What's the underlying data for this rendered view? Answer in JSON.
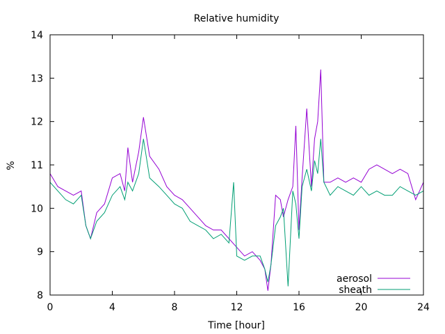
{
  "chart_data": {
    "type": "line",
    "title": "Relative humidity",
    "xlabel": "Time [hour]",
    "ylabel": "%",
    "xlim": [
      0,
      24
    ],
    "ylim": [
      8,
      14
    ],
    "xticks": [
      "0",
      "4",
      "8",
      "12",
      "16",
      "20",
      "24"
    ],
    "yticks": [
      "8",
      "9",
      "10",
      "11",
      "12",
      "13",
      "14"
    ],
    "grid": false,
    "legend_position": "bottom-right",
    "series": [
      {
        "name": "aerosol",
        "color": "#9400d3",
        "x": [
          0,
          0.5,
          1,
          1.5,
          2,
          2.3,
          2.6,
          3,
          3.5,
          4,
          4.5,
          4.8,
          5,
          5.3,
          5.7,
          6,
          6.4,
          7,
          7.5,
          8,
          8.5,
          9,
          9.5,
          10,
          10.5,
          11,
          11.5,
          12,
          12.5,
          13,
          13.5,
          13.8,
          14,
          14.2,
          14.5,
          14.8,
          15,
          15.3,
          15.6,
          15.8,
          16,
          16.2,
          16.5,
          16.8,
          17,
          17.2,
          17.4,
          17.6,
          18,
          18.5,
          19,
          19.5,
          20,
          20.5,
          21,
          21.5,
          22,
          22.5,
          23,
          23.5,
          24
        ],
        "y": [
          10.8,
          10.5,
          10.4,
          10.3,
          10.4,
          9.6,
          9.3,
          9.9,
          10.1,
          10.7,
          10.8,
          10.4,
          11.4,
          10.6,
          11.3,
          12.1,
          11.2,
          10.9,
          10.5,
          10.3,
          10.2,
          10.0,
          9.8,
          9.6,
          9.5,
          9.5,
          9.3,
          9.1,
          8.9,
          9.0,
          8.8,
          8.6,
          8.1,
          8.7,
          10.3,
          10.2,
          9.8,
          10.2,
          10.5,
          11.9,
          9.5,
          10.7,
          12.3,
          10.5,
          11.6,
          12.0,
          13.2,
          10.6,
          10.6,
          10.7,
          10.6,
          10.7,
          10.6,
          10.9,
          11.0,
          10.9,
          10.8,
          10.9,
          10.8,
          10.2,
          10.6
        ]
      },
      {
        "name": "sheath",
        "color": "#009e73",
        "x": [
          0,
          0.5,
          1,
          1.5,
          2,
          2.3,
          2.6,
          3,
          3.5,
          4,
          4.5,
          4.8,
          5,
          5.3,
          5.7,
          6,
          6.4,
          7,
          7.5,
          8,
          8.5,
          9,
          9.5,
          10,
          10.5,
          11,
          11.5,
          11.8,
          12,
          12.5,
          13,
          13.5,
          13.8,
          14,
          14.2,
          14.5,
          14.8,
          15,
          15.3,
          15.6,
          15.8,
          16,
          16.2,
          16.5,
          16.8,
          17,
          17.2,
          17.4,
          17.6,
          18,
          18.5,
          19,
          19.5,
          20,
          20.5,
          21,
          21.5,
          22,
          22.5,
          23,
          23.5,
          24
        ],
        "y": [
          10.6,
          10.4,
          10.2,
          10.1,
          10.3,
          9.6,
          9.3,
          9.7,
          9.9,
          10.3,
          10.5,
          10.2,
          10.6,
          10.4,
          10.8,
          11.6,
          10.7,
          10.5,
          10.3,
          10.1,
          10.0,
          9.7,
          9.6,
          9.5,
          9.3,
          9.4,
          9.2,
          10.6,
          8.9,
          8.8,
          8.9,
          8.9,
          8.6,
          8.3,
          8.7,
          9.6,
          9.8,
          10.0,
          8.2,
          10.4,
          10.1,
          9.3,
          10.5,
          10.9,
          10.4,
          11.1,
          10.8,
          11.6,
          10.6,
          10.3,
          10.5,
          10.4,
          10.3,
          10.5,
          10.3,
          10.4,
          10.3,
          10.3,
          10.5,
          10.4,
          10.3,
          10.4
        ]
      }
    ]
  }
}
